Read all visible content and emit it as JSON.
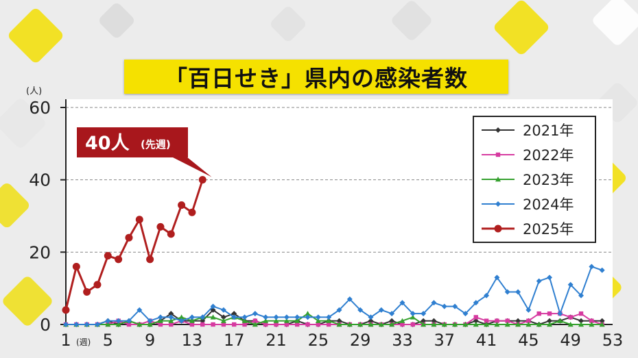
{
  "chart_data": {
    "type": "line",
    "title": "「百日せき」県内の感染者数",
    "y_unit": "(人)",
    "x_unit": "(週)",
    "ylim": [
      0,
      60
    ],
    "yticks": [
      0,
      20,
      40,
      60
    ],
    "xlim": [
      1,
      53
    ],
    "xticks": [
      1,
      5,
      9,
      13,
      17,
      21,
      25,
      29,
      33,
      37,
      41,
      45,
      49,
      53
    ],
    "grid": true,
    "legend_position": "top-right",
    "series": [
      {
        "name": "2021年",
        "color": "#333333",
        "marker": "diamond",
        "x": [
          1,
          2,
          3,
          4,
          5,
          6,
          7,
          8,
          9,
          10,
          11,
          12,
          13,
          14,
          15,
          16,
          17,
          18,
          19,
          20,
          21,
          22,
          23,
          24,
          25,
          26,
          27,
          28,
          29,
          30,
          31,
          32,
          33,
          34,
          35,
          36,
          37,
          38,
          39,
          40,
          41,
          42,
          43,
          44,
          45,
          46,
          47,
          48,
          49,
          50,
          51,
          52
        ],
        "y": [
          0,
          0,
          0,
          0,
          1,
          0,
          1,
          0,
          0,
          1,
          3,
          1,
          1,
          1,
          4,
          2,
          3,
          1,
          1,
          0,
          0,
          0,
          1,
          0,
          0,
          1,
          1,
          0,
          0,
          1,
          0,
          1,
          0,
          0,
          1,
          1,
          0,
          0,
          0,
          1,
          0,
          1,
          1,
          1,
          1,
          0,
          1,
          1,
          2,
          1,
          1,
          1
        ]
      },
      {
        "name": "2022年",
        "color": "#d63aa0",
        "marker": "square",
        "x": [
          1,
          2,
          3,
          4,
          5,
          6,
          7,
          8,
          9,
          10,
          11,
          12,
          13,
          14,
          15,
          16,
          17,
          18,
          19,
          20,
          21,
          22,
          23,
          24,
          25,
          26,
          27,
          28,
          29,
          30,
          31,
          32,
          33,
          34,
          35,
          36,
          37,
          38,
          39,
          40,
          41,
          42,
          43,
          44,
          45,
          46,
          47,
          48,
          49,
          50,
          51,
          52
        ],
        "y": [
          0,
          0,
          0,
          0,
          0,
          1,
          0,
          0,
          1,
          0,
          0,
          1,
          0,
          0,
          0,
          0,
          0,
          0,
          1,
          0,
          0,
          0,
          0,
          0,
          0,
          0,
          0,
          0,
          0,
          0,
          0,
          0,
          0,
          0,
          0,
          0,
          0,
          0,
          0,
          2,
          1,
          1,
          1,
          0,
          1,
          3,
          3,
          3,
          2,
          3,
          1,
          0
        ]
      },
      {
        "name": "2023年",
        "color": "#35a02e",
        "marker": "triangle",
        "x": [
          1,
          2,
          3,
          4,
          5,
          6,
          7,
          8,
          9,
          10,
          11,
          12,
          13,
          14,
          15,
          16,
          17,
          18,
          19,
          20,
          21,
          22,
          23,
          24,
          25,
          26,
          27,
          28,
          29,
          30,
          31,
          32,
          33,
          34,
          35,
          36,
          37,
          38,
          39,
          40,
          41,
          42,
          43,
          44,
          45,
          46,
          47,
          48,
          49,
          50,
          51,
          52
        ],
        "y": [
          0,
          0,
          0,
          0,
          0,
          0,
          1,
          0,
          0,
          1,
          1,
          2,
          1,
          2,
          2,
          1,
          2,
          1,
          0,
          1,
          1,
          1,
          1,
          3,
          1,
          1,
          0,
          0,
          0,
          0,
          0,
          0,
          1,
          2,
          0,
          0,
          0,
          0,
          0,
          0,
          0,
          0,
          0,
          0,
          0,
          0,
          0,
          1,
          0,
          0,
          0,
          0
        ]
      },
      {
        "name": "2024年",
        "color": "#2f7fd0",
        "marker": "diamond",
        "x": [
          1,
          2,
          3,
          4,
          5,
          6,
          7,
          8,
          9,
          10,
          11,
          12,
          13,
          14,
          15,
          16,
          17,
          18,
          19,
          20,
          21,
          22,
          23,
          24,
          25,
          26,
          27,
          28,
          29,
          30,
          31,
          32,
          33,
          34,
          35,
          36,
          37,
          38,
          39,
          40,
          41,
          42,
          43,
          44,
          45,
          46,
          47,
          48,
          49,
          50,
          51,
          52
        ],
        "y": [
          0,
          0,
          0,
          0,
          1,
          1,
          1,
          4,
          1,
          2,
          2,
          1,
          2,
          2,
          5,
          4,
          2,
          2,
          3,
          2,
          2,
          2,
          2,
          2,
          2,
          2,
          4,
          7,
          4,
          2,
          4,
          3,
          6,
          3,
          3,
          6,
          5,
          5,
          3,
          6,
          8,
          13,
          9,
          9,
          4,
          12,
          13,
          3,
          11,
          8,
          16,
          15
        ]
      },
      {
        "name": "2025年",
        "color": "#b01e1e",
        "marker": "circle",
        "x": [
          1,
          2,
          3,
          4,
          5,
          6,
          7,
          8,
          9,
          10,
          11,
          12,
          13,
          14,
          15
        ],
        "y": [
          4,
          16,
          9,
          11,
          19,
          18,
          24,
          29,
          18,
          27,
          25,
          33,
          31,
          40,
          null
        ]
      }
    ],
    "annotation": {
      "text": "40人",
      "suffix": "(先週)",
      "x": 15,
      "y": 40
    }
  }
}
